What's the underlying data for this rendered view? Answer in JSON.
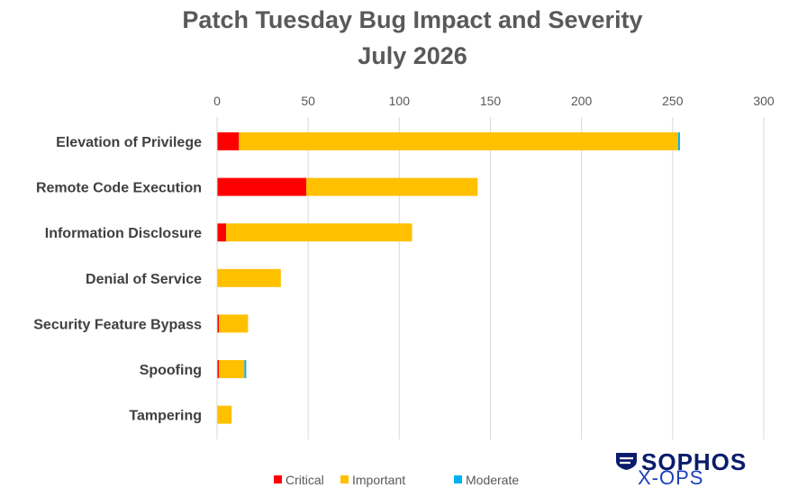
{
  "chart_data": {
    "type": "bar",
    "orientation": "horizontal",
    "stacked": true,
    "title": "Patch Tuesday Bug Impact and Severity",
    "subtitle": "July 2026",
    "categories": [
      "Elevation of Privilege",
      "Remote Code Execution",
      "Information Disclosure",
      "Denial of Service",
      "Security Feature Bypass",
      "Spoofing",
      "Tampering"
    ],
    "series": [
      {
        "name": "Critical",
        "color": "#ff0000",
        "values": [
          12,
          49,
          5,
          0,
          1,
          1,
          0
        ]
      },
      {
        "name": "Important",
        "color": "#ffc000",
        "values": [
          241,
          94,
          102,
          35,
          16,
          14,
          8
        ]
      },
      {
        "name": "Moderate",
        "color": "#00b0f0",
        "values": [
          1,
          0,
          0,
          0,
          0,
          1,
          0
        ]
      }
    ],
    "xlim": [
      0,
      300
    ],
    "xticks": [
      0,
      50,
      100,
      150,
      200,
      250,
      300
    ],
    "x_axis_position": "top",
    "grid": true,
    "legend": "bottom"
  },
  "logo": {
    "name": "SOPHOS",
    "subtitle": "X-OPS",
    "icon": "sophos-shield-icon"
  }
}
